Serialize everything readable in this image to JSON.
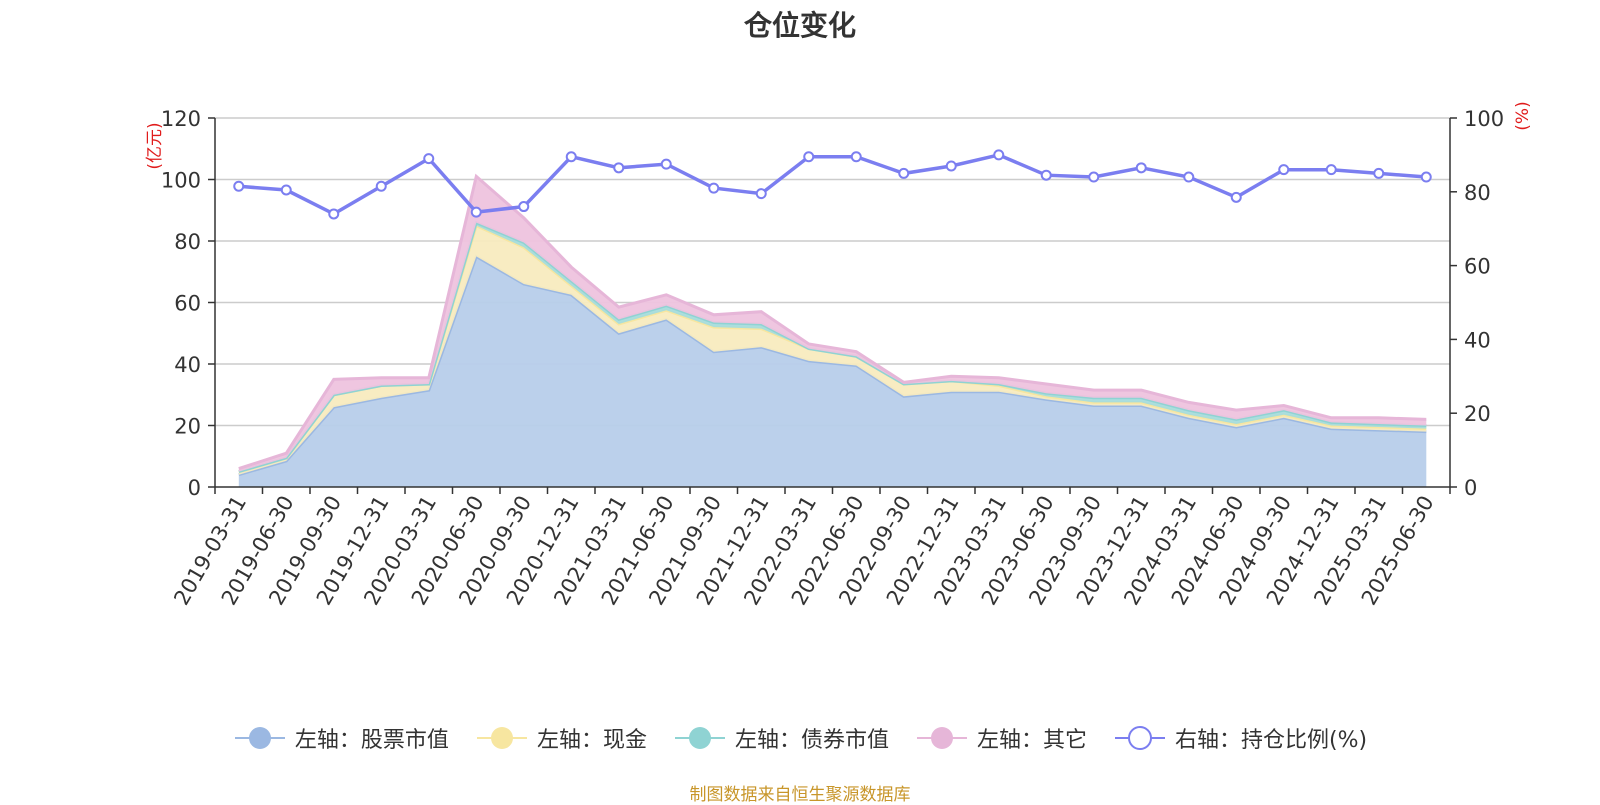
{
  "chart_data": {
    "type": "area",
    "title": "仓位变化",
    "categories": [
      "2019-03-31",
      "2019-06-30",
      "2019-09-30",
      "2019-12-31",
      "2020-03-31",
      "2020-06-30",
      "2020-09-30",
      "2020-12-31",
      "2021-03-31",
      "2021-06-30",
      "2021-09-30",
      "2021-12-31",
      "2022-03-31",
      "2022-06-30",
      "2022-09-30",
      "2022-12-31",
      "2023-03-31",
      "2023-06-30",
      "2023-09-30",
      "2023-12-31",
      "2024-03-31",
      "2024-06-30",
      "2024-09-30",
      "2024-12-31",
      "2025-03-31",
      "2025-06-30"
    ],
    "left_axis": {
      "unit": "(亿元)",
      "ylim": [
        0,
        120
      ],
      "ticks": [
        0,
        20,
        40,
        60,
        80,
        100,
        120
      ]
    },
    "right_axis": {
      "unit": "(%)",
      "ylim": [
        0,
        100
      ],
      "ticks": [
        0,
        20,
        40,
        60,
        80,
        100
      ]
    },
    "grid": true,
    "legend_position": "bottom",
    "series": [
      {
        "name": "左轴：股票市值",
        "axis": "left",
        "color": "#9bb8e2",
        "fill": "#b7cdea",
        "values": [
          4.0,
          8.5,
          26.0,
          29.0,
          31.5,
          75.0,
          66.0,
          62.5,
          50.0,
          54.5,
          44.0,
          45.5,
          41.0,
          39.5,
          29.5,
          31.0,
          31.0,
          28.5,
          26.5,
          26.5,
          22.5,
          19.5,
          22.5,
          19.0,
          18.5,
          18.0
        ]
      },
      {
        "name": "左轴：现金",
        "axis": "left",
        "color": "#f7e6a0",
        "fill": "#f8ebbf",
        "values": [
          1.0,
          1.0,
          4.0,
          4.0,
          2.0,
          10.0,
          12.0,
          3.0,
          3.0,
          3.0,
          8.0,
          6.0,
          4.0,
          3.0,
          4.0,
          3.5,
          2.0,
          1.0,
          1.0,
          1.0,
          1.0,
          1.0,
          1.0,
          1.0,
          1.0,
          1.0
        ]
      },
      {
        "name": "左轴：债券市值",
        "axis": "left",
        "color": "#8fd3d3",
        "fill": "#a7dcdc",
        "values": [
          0,
          0,
          0,
          0,
          0,
          1.0,
          1.5,
          1.5,
          1.5,
          1.5,
          1.5,
          1.5,
          0,
          0,
          0,
          0,
          0.5,
          1.0,
          1.5,
          1.5,
          1.5,
          1.5,
          1.5,
          1.0,
          1.0,
          1.0
        ]
      },
      {
        "name": "左轴：其它",
        "axis": "left",
        "color": "#e6b6d8",
        "fill": "#eec3de",
        "values": [
          1.0,
          1.5,
          5.0,
          2.5,
          2.0,
          15.0,
          8.0,
          4.5,
          4.0,
          3.5,
          2.5,
          4.0,
          1.5,
          1.5,
          0.5,
          1.5,
          2.0,
          3.0,
          2.5,
          2.5,
          2.5,
          3.0,
          1.5,
          1.5,
          2.0,
          2.0
        ]
      },
      {
        "name": "右轴：持仓比例(%)",
        "axis": "right",
        "color": "#7b7ef0",
        "type": "line",
        "values": [
          81.5,
          80.5,
          74.0,
          81.5,
          89.0,
          74.5,
          76.0,
          89.5,
          86.5,
          87.5,
          81.0,
          79.5,
          89.5,
          89.5,
          85.0,
          87.0,
          90.0,
          84.5,
          84.0,
          86.5,
          84.0,
          78.5,
          86.0,
          86.0,
          85.0,
          84.0
        ]
      }
    ]
  },
  "footer": {
    "source": "制图数据来自恒生聚源数据库"
  }
}
